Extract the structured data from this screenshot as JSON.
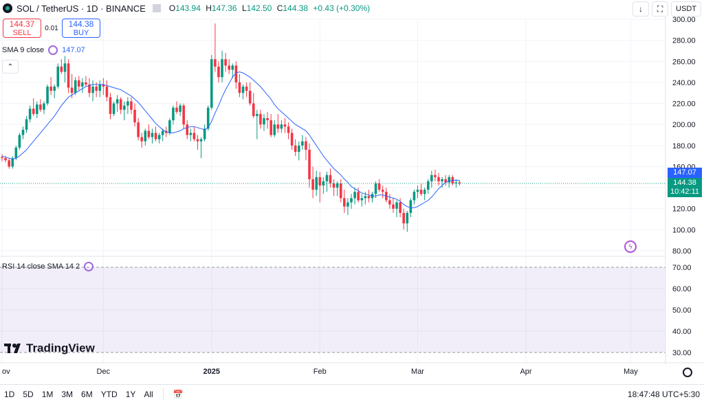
{
  "header": {
    "symbol": "SOL / TetherUS · 1D · BINANCE",
    "ohlc": {
      "o_label": "O",
      "o": "143.94",
      "h_label": "H",
      "h": "147.36",
      "l_label": "L",
      "l": "142.50",
      "c_label": "C",
      "c": "144.38",
      "change": "+0.43 (+0.30%)"
    },
    "currency": "USDT"
  },
  "trade": {
    "sell_price": "144.37",
    "sell_label": "SELL",
    "spread": "0.01",
    "buy_price": "144.38",
    "buy_label": "BUY"
  },
  "indicators": {
    "sma_label": "SMA 9 close",
    "sma_value": "147.07",
    "rsi_label": "RSI 14 close SMA 14 2"
  },
  "price_tags": {
    "sma": "147.07",
    "last": "144.38",
    "countdown": "10:42:11"
  },
  "logo_text": "TradingView",
  "timeframes": [
    "1D",
    "5D",
    "1M",
    "3M",
    "6M",
    "YTD",
    "1Y",
    "All"
  ],
  "clock": "18:47:48 UTC+5:30",
  "colors": {
    "up": "#089981",
    "down": "#f23645",
    "sma": "#2962ff",
    "rsi_band": "#7e57c2"
  },
  "chart_data": {
    "type": "candlestick",
    "y_ticks": [
      "300.00",
      "280.00",
      "260.00",
      "240.00",
      "220.00",
      "200.00",
      "180.00",
      "160.00",
      "140.00",
      "120.00",
      "100.00",
      "80.00"
    ],
    "ylim": [
      80,
      300
    ],
    "rsi_ticks": [
      "70.00",
      "60.00",
      "50.00",
      "40.00",
      "30.00"
    ],
    "rsi_lim": [
      30,
      70
    ],
    "x_labels": [
      {
        "label": "ov",
        "index": 0
      },
      {
        "label": "Dec",
        "index": 29
      },
      {
        "label": "2025",
        "index": 60
      },
      {
        "label": "Feb",
        "index": 91
      },
      {
        "label": "Mar",
        "index": 119
      },
      {
        "label": "Apr",
        "index": 150
      },
      {
        "label": "May",
        "index": 180
      }
    ],
    "candles": [
      [
        169,
        172,
        165,
        168
      ],
      [
        168,
        170,
        164,
        166
      ],
      [
        166,
        168,
        158,
        160
      ],
      [
        160,
        170,
        158,
        168
      ],
      [
        168,
        180,
        166,
        178
      ],
      [
        178,
        192,
        176,
        190
      ],
      [
        190,
        198,
        186,
        195
      ],
      [
        195,
        208,
        192,
        205
      ],
      [
        205,
        218,
        202,
        215
      ],
      [
        215,
        225,
        208,
        210
      ],
      [
        210,
        222,
        206,
        219
      ],
      [
        219,
        224,
        212,
        214
      ],
      [
        214,
        222,
        210,
        220
      ],
      [
        220,
        238,
        218,
        236
      ],
      [
        236,
        245,
        228,
        232
      ],
      [
        232,
        238,
        225,
        236
      ],
      [
        236,
        258,
        234,
        255
      ],
      [
        255,
        262,
        248,
        250
      ],
      [
        250,
        265,
        240,
        258
      ],
      [
        258,
        262,
        230,
        235
      ],
      [
        235,
        248,
        225,
        230
      ],
      [
        230,
        245,
        228,
        242
      ],
      [
        242,
        246,
        232,
        236
      ],
      [
        236,
        244,
        230,
        240
      ],
      [
        240,
        246,
        236,
        238
      ],
      [
        238,
        244,
        226,
        230
      ],
      [
        230,
        242,
        222,
        236
      ],
      [
        236,
        240,
        226,
        232
      ],
      [
        232,
        242,
        226,
        238
      ],
      [
        238,
        244,
        228,
        236
      ],
      [
        236,
        242,
        222,
        226
      ],
      [
        226,
        230,
        205,
        210
      ],
      [
        210,
        222,
        208,
        220
      ],
      [
        220,
        228,
        212,
        224
      ],
      [
        224,
        226,
        210,
        214
      ],
      [
        214,
        222,
        204,
        218
      ],
      [
        218,
        226,
        210,
        222
      ],
      [
        222,
        226,
        210,
        214
      ],
      [
        214,
        220,
        198,
        202
      ],
      [
        202,
        206,
        185,
        188
      ],
      [
        188,
        192,
        178,
        184
      ],
      [
        184,
        196,
        180,
        194
      ],
      [
        194,
        200,
        186,
        188
      ],
      [
        188,
        196,
        182,
        192
      ],
      [
        192,
        198,
        184,
        186
      ],
      [
        186,
        192,
        182,
        190
      ],
      [
        190,
        196,
        184,
        194
      ],
      [
        194,
        198,
        188,
        192
      ],
      [
        192,
        206,
        190,
        204
      ],
      [
        204,
        218,
        200,
        216
      ],
      [
        216,
        222,
        210,
        212
      ],
      [
        212,
        220,
        208,
        218
      ],
      [
        218,
        220,
        196,
        200
      ],
      [
        200,
        204,
        186,
        190
      ],
      [
        190,
        196,
        184,
        192
      ],
      [
        192,
        198,
        184,
        186
      ],
      [
        186,
        190,
        176,
        184
      ],
      [
        184,
        188,
        168,
        186
      ],
      [
        186,
        200,
        184,
        196
      ],
      [
        196,
        218,
        194,
        216
      ],
      [
        216,
        266,
        214,
        262
      ],
      [
        262,
        296,
        250,
        255
      ],
      [
        255,
        260,
        240,
        245
      ],
      [
        245,
        270,
        240,
        262
      ],
      [
        262,
        268,
        250,
        256
      ],
      [
        256,
        262,
        248,
        252
      ],
      [
        252,
        258,
        244,
        256
      ],
      [
        256,
        260,
        234,
        240
      ],
      [
        240,
        248,
        226,
        230
      ],
      [
        230,
        238,
        224,
        236
      ],
      [
        236,
        240,
        226,
        232
      ],
      [
        232,
        240,
        218,
        220
      ],
      [
        220,
        230,
        206,
        208
      ],
      [
        208,
        214,
        186,
        210
      ],
      [
        210,
        214,
        196,
        200
      ],
      [
        200,
        210,
        194,
        206
      ],
      [
        206,
        212,
        196,
        204
      ],
      [
        204,
        210,
        188,
        190
      ],
      [
        190,
        204,
        188,
        200
      ],
      [
        200,
        210,
        192,
        196
      ],
      [
        196,
        204,
        192,
        200
      ],
      [
        200,
        206,
        192,
        198
      ],
      [
        198,
        202,
        186,
        192
      ],
      [
        192,
        196,
        176,
        180
      ],
      [
        180,
        186,
        170,
        174
      ],
      [
        174,
        184,
        166,
        180
      ],
      [
        180,
        190,
        176,
        184
      ],
      [
        184,
        188,
        166,
        176
      ],
      [
        176,
        182,
        140,
        148
      ],
      [
        148,
        160,
        130,
        138
      ],
      [
        138,
        156,
        132,
        150
      ],
      [
        150,
        155,
        126,
        142
      ],
      [
        142,
        150,
        134,
        146
      ],
      [
        146,
        155,
        136,
        152
      ],
      [
        152,
        158,
        140,
        144
      ],
      [
        144,
        148,
        132,
        140
      ],
      [
        140,
        146,
        132,
        144
      ],
      [
        144,
        148,
        126,
        130
      ],
      [
        130,
        138,
        116,
        122
      ],
      [
        122,
        130,
        114,
        126
      ],
      [
        126,
        134,
        120,
        130
      ],
      [
        130,
        140,
        124,
        136
      ],
      [
        136,
        140,
        126,
        128
      ],
      [
        128,
        134,
        122,
        130
      ],
      [
        130,
        136,
        124,
        132
      ],
      [
        132,
        138,
        126,
        130
      ],
      [
        130,
        136,
        126,
        134
      ],
      [
        134,
        146,
        130,
        144
      ],
      [
        144,
        148,
        136,
        138
      ],
      [
        138,
        142,
        130,
        136
      ],
      [
        136,
        140,
        126,
        128
      ],
      [
        128,
        134,
        120,
        124
      ],
      [
        124,
        130,
        116,
        120
      ],
      [
        120,
        128,
        112,
        126
      ],
      [
        126,
        130,
        112,
        116
      ],
      [
        116,
        120,
        100,
        106
      ],
      [
        106,
        118,
        98,
        116
      ],
      [
        116,
        130,
        112,
        128
      ],
      [
        128,
        138,
        124,
        136
      ],
      [
        136,
        142,
        130,
        138
      ],
      [
        138,
        144,
        132,
        134
      ],
      [
        134,
        140,
        128,
        138
      ],
      [
        138,
        148,
        134,
        146
      ],
      [
        146,
        156,
        140,
        152
      ],
      [
        152,
        157,
        146,
        150
      ],
      [
        150,
        154,
        142,
        146
      ],
      [
        146,
        150,
        140,
        148
      ],
      [
        148,
        152,
        142,
        145
      ],
      [
        145,
        152,
        140,
        150
      ],
      [
        150,
        152,
        142,
        144
      ],
      [
        144,
        148,
        140,
        145
      ],
      [
        145,
        147,
        142,
        144
      ]
    ],
    "sma9": [
      170,
      169,
      168,
      167,
      168,
      170,
      173,
      176,
      180,
      184,
      188,
      192,
      196,
      200,
      204,
      208,
      213,
      218,
      222,
      226,
      228,
      230,
      232,
      234,
      236,
      237,
      238,
      238,
      238,
      238,
      237,
      236,
      235,
      234,
      233,
      231,
      229,
      227,
      224,
      221,
      217,
      213,
      209,
      205,
      201,
      198,
      195,
      193,
      192,
      192,
      193,
      194,
      196,
      197,
      198,
      198,
      197,
      196,
      195,
      197,
      203,
      211,
      218,
      226,
      233,
      239,
      245,
      249,
      250,
      249,
      247,
      245,
      242,
      239,
      236,
      232,
      228,
      224,
      219,
      215,
      212,
      209,
      206,
      203,
      200,
      198,
      196,
      194,
      190,
      185,
      180,
      175,
      170,
      166,
      162,
      158,
      155,
      152,
      148,
      145,
      141,
      139,
      137,
      135,
      134,
      133,
      132,
      132,
      133,
      133,
      132,
      131,
      130,
      129,
      127,
      124,
      122,
      121,
      121,
      122,
      124,
      126,
      128,
      131,
      135,
      139,
      142,
      145,
      146,
      147,
      147,
      147
    ]
  }
}
